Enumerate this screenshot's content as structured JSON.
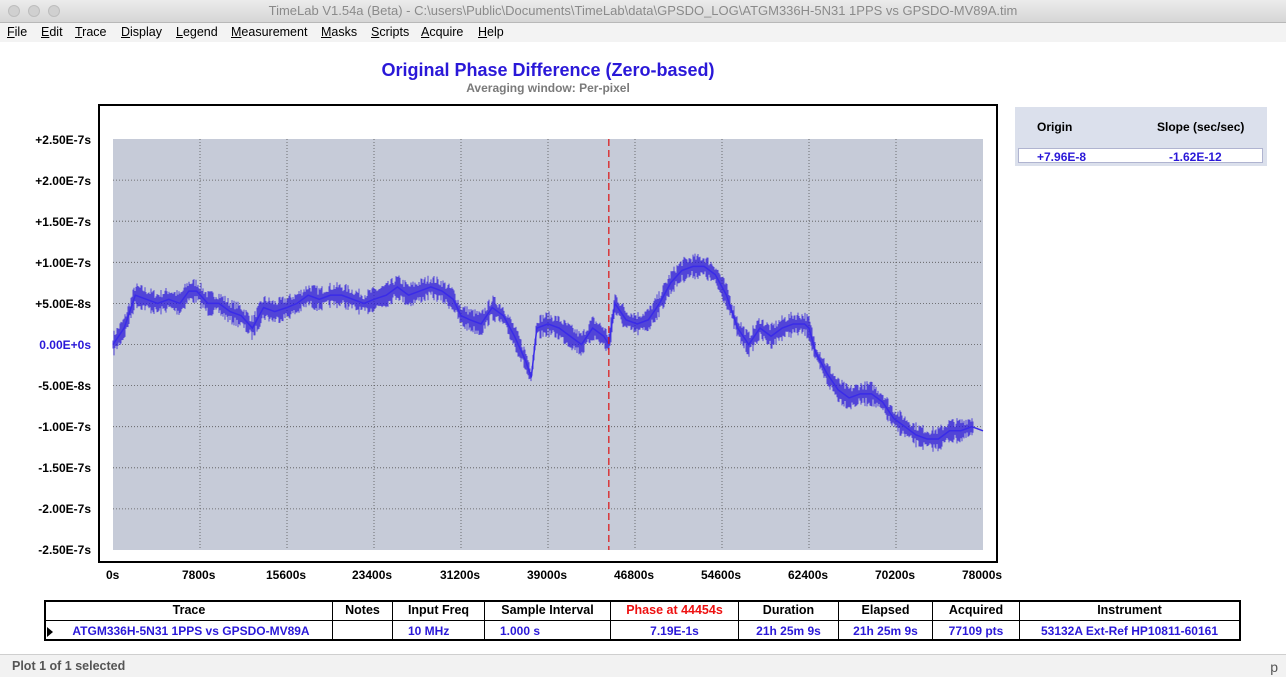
{
  "window": {
    "title": "TimeLab V1.54a (Beta) - C:\\users\\Public\\Documents\\TimeLab\\data\\GPSDO_LOG\\ATGM336H-5N31 1PPS vs GPSDO-MV89A.tim"
  },
  "menu": [
    "File",
    "Edit",
    "Trace",
    "Display",
    "Legend",
    "Measurement",
    "Masks",
    "Scripts",
    "Acquire",
    "Help"
  ],
  "plot": {
    "title": "Original Phase Difference (Zero-based)",
    "subtitle": "Averaging window: Per-pixel",
    "y_tick_labels": [
      "+2.50E-7s",
      "+2.00E-7s",
      "+1.50E-7s",
      "+1.00E-7s",
      "+5.00E-8s",
      "0.00E+0s",
      "-5.00E-8s",
      "-1.00E-7s",
      "-1.50E-7s",
      "-2.00E-7s",
      "-2.50E-7s"
    ],
    "x_tick_labels": [
      "0s",
      "7800s",
      "15600s",
      "23400s",
      "31200s",
      "39000s",
      "46800s",
      "54600s",
      "62400s",
      "70200s",
      "78000s"
    ]
  },
  "colors": {
    "trace": "#2a18d8",
    "plot_bg": "#c6cbd8",
    "cursor": "#dd1111",
    "zero_label": "#2a18d8"
  },
  "chart_data": {
    "type": "line",
    "title": "Original Phase Difference (Zero-based)",
    "subtitle": "Averaging window: Per-pixel",
    "xlabel": "",
    "ylabel": "",
    "xlim": [
      0,
      78000
    ],
    "ylim": [
      -2.5e-07,
      2.5e-07
    ],
    "grid": true,
    "cursor_x": 44454,
    "series": [
      {
        "name": "ATGM336H-5N31 1PPS vs GPSDO-MV89A",
        "x": [
          0,
          1000,
          2000,
          3000,
          4000,
          5000,
          6000,
          6800,
          7500,
          8500,
          9500,
          10500,
          11500,
          12500,
          13500,
          14500,
          15600,
          16500,
          17500,
          18500,
          19500,
          20500,
          21500,
          22500,
          23400,
          24500,
          25500,
          26500,
          27500,
          28500,
          29500,
          30500,
          31200,
          32000,
          33000,
          34000,
          35000,
          36000,
          37000,
          37500,
          38000,
          39000,
          40000,
          41000,
          42000,
          43000,
          44000,
          44454,
          45000,
          46000,
          47000,
          48000,
          49000,
          50000,
          51000,
          52000,
          53000,
          54000,
          55000,
          56000,
          57000,
          58000,
          59000,
          60000,
          61000,
          62000,
          62400,
          63000,
          64000,
          65000,
          66000,
          67000,
          68000,
          69000,
          70000,
          71000,
          72000,
          73000,
          74000,
          75000,
          76000,
          77000,
          78000
        ],
        "y": [
          0.0,
          2e-08,
          6e-08,
          5.5e-08,
          5e-08,
          5.5e-08,
          5e-08,
          6.5e-08,
          6.5e-08,
          5e-08,
          5e-08,
          4e-08,
          3.5e-08,
          2e-08,
          4.5e-08,
          4e-08,
          4.5e-08,
          5e-08,
          6e-08,
          5.5e-08,
          6e-08,
          6e-08,
          5.5e-08,
          5e-08,
          5.5e-08,
          6e-08,
          7e-08,
          6e-08,
          6.5e-08,
          7e-08,
          6.5e-08,
          5.5e-08,
          3.5e-08,
          3e-08,
          2.5e-08,
          4.5e-08,
          3.5e-08,
          1e-08,
          -2e-08,
          -4e-08,
          2e-08,
          2.5e-08,
          2e-08,
          1e-08,
          0.0,
          2e-08,
          1e-08,
          0.0,
          5e-08,
          3e-08,
          2.5e-08,
          3e-08,
          5e-08,
          7.5e-08,
          9e-08,
          9.5e-08,
          9.5e-08,
          8.5e-08,
          6e-08,
          2e-08,
          0.0,
          2e-08,
          1e-08,
          2e-08,
          2.5e-08,
          2.5e-08,
          2e-08,
          -1e-08,
          -3.5e-08,
          -5.5e-08,
          -6.5e-08,
          -6e-08,
          -6e-08,
          -7e-08,
          -9e-08,
          -1e-07,
          -1.1e-07,
          -1.15e-07,
          -1.15e-07,
          -1.05e-07,
          -1.05e-07,
          -1e-07,
          -1.05e-07
        ]
      }
    ]
  },
  "fit": {
    "origin_header": "Origin",
    "slope_header": "Slope (sec/sec)",
    "origin_value": "+7.96E-8",
    "slope_value": "-1.62E-12"
  },
  "table": {
    "headers": {
      "trace": "Trace",
      "notes": "Notes",
      "input_freq": "Input Freq",
      "sample_interval": "Sample Interval",
      "phase_at": "Phase at 44454s",
      "duration": "Duration",
      "elapsed": "Elapsed",
      "acquired": "Acquired",
      "instrument": "Instrument"
    },
    "row": {
      "trace": "ATGM336H-5N31 1PPS vs GPSDO-MV89A",
      "notes": "",
      "input_freq": "10 MHz",
      "sample_interval": "1.000 s",
      "phase_at": "7.19E-1s",
      "duration": "21h 25m 9s",
      "elapsed": "21h 25m 9s",
      "acquired": "77109 pts",
      "instrument": "53132A Ext-Ref HP10811-60161"
    }
  },
  "status": {
    "text": "Plot 1 of 1 selected",
    "right": "p"
  }
}
